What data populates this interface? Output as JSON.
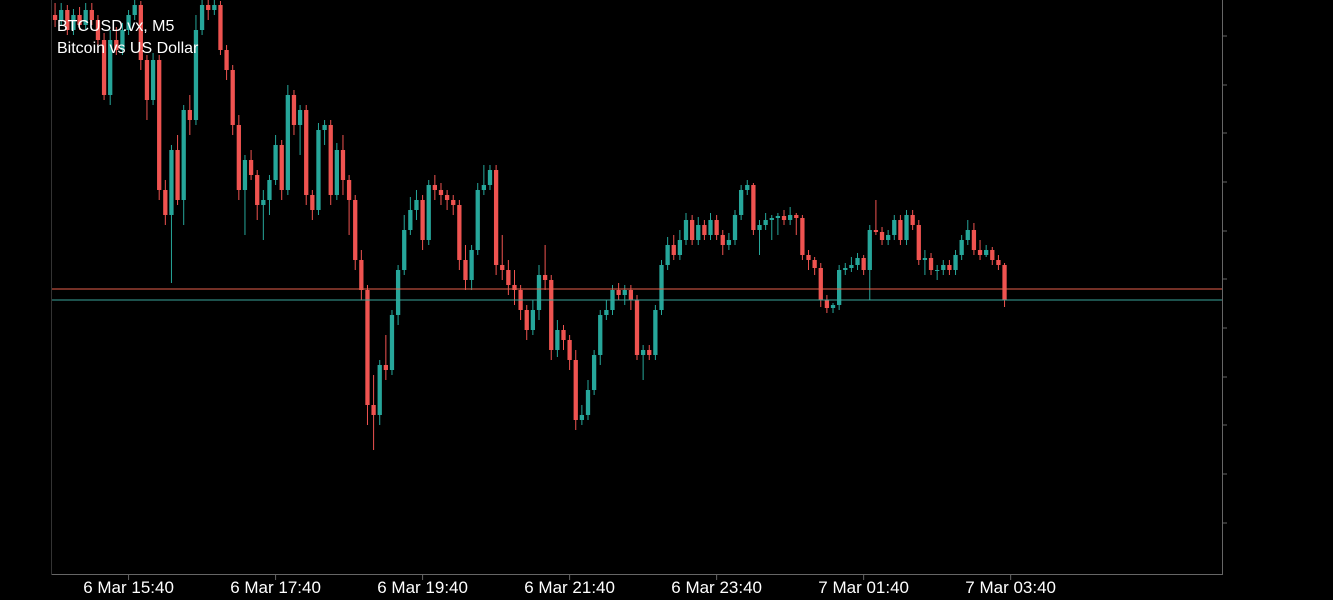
{
  "chart_data": {
    "type": "candlestick",
    "title": "BTCUSD.vx, M5",
    "subtitle": "Bitcoin vs US Dollar",
    "up_color": "#26a69a",
    "down_color": "#ef5350",
    "bid": 286,
    "bid_color": "#e8604c",
    "ask": 275,
    "ask_color": "#3aa59a",
    "ylim": [
      0,
      575
    ],
    "categories": [
      null,
      null,
      null,
      null,
      null,
      null,
      null,
      null,
      null,
      null,
      null,
      null,
      "6 Mar 15:40",
      null,
      null,
      null,
      null,
      null,
      null,
      null,
      null,
      null,
      null,
      null,
      null,
      null,
      null,
      null,
      null,
      null,
      null,
      null,
      null,
      null,
      null,
      null,
      "6 Mar 17:40",
      null,
      null,
      null,
      null,
      null,
      null,
      null,
      null,
      null,
      null,
      null,
      null,
      null,
      null,
      null,
      null,
      null,
      null,
      null,
      null,
      null,
      null,
      null,
      "6 Mar 19:40",
      null,
      null,
      null,
      null,
      null,
      null,
      null,
      null,
      null,
      null,
      null,
      null,
      null,
      null,
      null,
      null,
      null,
      null,
      null,
      null,
      null,
      null,
      null,
      "6 Mar 21:40",
      null,
      null,
      null,
      null,
      null,
      null,
      null,
      null,
      null,
      null,
      null,
      null,
      null,
      null,
      null,
      null,
      null,
      null,
      null,
      null,
      null,
      null,
      null,
      "6 Mar 23:40",
      null,
      null,
      null,
      null,
      null,
      null,
      null,
      null,
      null,
      null,
      null,
      null,
      null,
      null,
      null,
      null,
      null,
      null,
      null,
      null,
      null,
      null,
      null,
      "7 Mar 01:40",
      null,
      null,
      null,
      null,
      null,
      null,
      null,
      null,
      null,
      null,
      null,
      null,
      null,
      null,
      null,
      null,
      null,
      null,
      null,
      null,
      null,
      null,
      null,
      "7 Mar 03:40",
      null,
      null,
      null,
      null,
      null,
      null,
      null,
      null,
      null,
      null,
      null,
      null,
      null,
      null,
      null,
      null,
      null,
      null,
      null,
      null,
      null,
      null,
      null,
      null,
      null,
      null,
      null,
      null,
      null,
      null,
      null,
      null,
      null,
      null
    ],
    "candles": [
      [
        560,
        572,
        548,
        555
      ],
      [
        555,
        572,
        550,
        565
      ],
      [
        565,
        570,
        540,
        545
      ],
      [
        545,
        566,
        540,
        560
      ],
      [
        560,
        568,
        545,
        550
      ],
      [
        550,
        572,
        545,
        565
      ],
      [
        565,
        572,
        550,
        555
      ],
      [
        555,
        560,
        525,
        535
      ],
      [
        535,
        542,
        475,
        480
      ],
      [
        480,
        545,
        470,
        535
      ],
      [
        535,
        548,
        520,
        525
      ],
      [
        525,
        552,
        520,
        545
      ],
      [
        545,
        565,
        540,
        560
      ],
      [
        560,
        575,
        555,
        570
      ],
      [
        570,
        574,
        505,
        515
      ],
      [
        515,
        520,
        455,
        475
      ],
      [
        475,
        522,
        470,
        515
      ],
      [
        515,
        520,
        375,
        385
      ],
      [
        385,
        395,
        350,
        360
      ],
      [
        360,
        430,
        292,
        425
      ],
      [
        425,
        440,
        370,
        375
      ],
      [
        375,
        470,
        350,
        465
      ],
      [
        465,
        480,
        440,
        455
      ],
      [
        455,
        560,
        450,
        545
      ],
      [
        545,
        575,
        540,
        570
      ],
      [
        570,
        575,
        555,
        565
      ],
      [
        565,
        575,
        560,
        570
      ],
      [
        570,
        574,
        520,
        525
      ],
      [
        525,
        530,
        495,
        505
      ],
      [
        505,
        510,
        440,
        450
      ],
      [
        450,
        460,
        375,
        385
      ],
      [
        385,
        420,
        340,
        415
      ],
      [
        415,
        425,
        395,
        400
      ],
      [
        400,
        405,
        355,
        370
      ],
      [
        370,
        385,
        335,
        375
      ],
      [
        375,
        400,
        360,
        395
      ],
      [
        395,
        440,
        390,
        430
      ],
      [
        430,
        435,
        375,
        385
      ],
      [
        385,
        490,
        380,
        480
      ],
      [
        480,
        485,
        440,
        450
      ],
      [
        450,
        470,
        420,
        465
      ],
      [
        465,
        470,
        370,
        380
      ],
      [
        380,
        385,
        355,
        365
      ],
      [
        365,
        452,
        360,
        445
      ],
      [
        445,
        455,
        430,
        450
      ],
      [
        450,
        455,
        370,
        380
      ],
      [
        380,
        432,
        375,
        425
      ],
      [
        425,
        440,
        380,
        395
      ],
      [
        395,
        400,
        340,
        375
      ],
      [
        375,
        380,
        305,
        315
      ],
      [
        315,
        325,
        275,
        285
      ],
      [
        285,
        290,
        150,
        170
      ],
      [
        170,
        200,
        125,
        160
      ],
      [
        160,
        215,
        150,
        210
      ],
      [
        210,
        240,
        195,
        205
      ],
      [
        205,
        265,
        200,
        260
      ],
      [
        260,
        310,
        250,
        305
      ],
      [
        305,
        360,
        300,
        345
      ],
      [
        345,
        378,
        340,
        365
      ],
      [
        365,
        385,
        355,
        375
      ],
      [
        375,
        380,
        325,
        335
      ],
      [
        335,
        395,
        330,
        390
      ],
      [
        390,
        400,
        375,
        385
      ],
      [
        385,
        392,
        370,
        380
      ],
      [
        380,
        385,
        365,
        375
      ],
      [
        375,
        380,
        360,
        370
      ],
      [
        370,
        375,
        305,
        315
      ],
      [
        315,
        330,
        285,
        295
      ],
      [
        295,
        330,
        285,
        325
      ],
      [
        325,
        392,
        320,
        385
      ],
      [
        385,
        410,
        380,
        390
      ],
      [
        390,
        410,
        385,
        405
      ],
      [
        405,
        410,
        300,
        310
      ],
      [
        310,
        340,
        295,
        305
      ],
      [
        305,
        315,
        280,
        290
      ],
      [
        290,
        305,
        270,
        285
      ],
      [
        285,
        290,
        255,
        265
      ],
      [
        265,
        270,
        235,
        245
      ],
      [
        245,
        275,
        240,
        265
      ],
      [
        265,
        310,
        255,
        300
      ],
      [
        300,
        330,
        285,
        295
      ],
      [
        295,
        300,
        215,
        225
      ],
      [
        225,
        255,
        218,
        245
      ],
      [
        245,
        250,
        225,
        235
      ],
      [
        235,
        240,
        205,
        215
      ],
      [
        215,
        225,
        145,
        155
      ],
      [
        155,
        170,
        150,
        160
      ],
      [
        160,
        195,
        155,
        185
      ],
      [
        185,
        225,
        180,
        220
      ],
      [
        220,
        265,
        210,
        260
      ],
      [
        260,
        275,
        255,
        265
      ],
      [
        265,
        290,
        260,
        285
      ],
      [
        285,
        292,
        275,
        280
      ],
      [
        280,
        290,
        270,
        285
      ],
      [
        285,
        290,
        265,
        275
      ],
      [
        275,
        280,
        215,
        220
      ],
      [
        220,
        230,
        195,
        225
      ],
      [
        225,
        230,
        215,
        220
      ],
      [
        220,
        270,
        215,
        265
      ],
      [
        265,
        315,
        260,
        310
      ],
      [
        310,
        338,
        305,
        330
      ],
      [
        330,
        340,
        315,
        320
      ],
      [
        320,
        345,
        315,
        335
      ],
      [
        335,
        362,
        330,
        355
      ],
      [
        355,
        360,
        330,
        335
      ],
      [
        335,
        358,
        330,
        350
      ],
      [
        350,
        355,
        335,
        340
      ],
      [
        340,
        362,
        335,
        355
      ],
      [
        355,
        360,
        335,
        340
      ],
      [
        340,
        345,
        320,
        330
      ],
      [
        330,
        342,
        325,
        335
      ],
      [
        335,
        365,
        330,
        360
      ],
      [
        360,
        390,
        355,
        385
      ],
      [
        385,
        395,
        380,
        390
      ],
      [
        390,
        392,
        340,
        345
      ],
      [
        345,
        355,
        320,
        350
      ],
      [
        350,
        362,
        345,
        355
      ],
      [
        355,
        360,
        335,
        357
      ],
      [
        357,
        362,
        340,
        359
      ],
      [
        359,
        365,
        350,
        355
      ],
      [
        355,
        368,
        350,
        360
      ],
      [
        360,
        362,
        340,
        357
      ],
      [
        357,
        360,
        315,
        320
      ],
      [
        320,
        325,
        305,
        315
      ],
      [
        315,
        318,
        300,
        307
      ],
      [
        307,
        312,
        268,
        275
      ],
      [
        275,
        280,
        262,
        267
      ],
      [
        267,
        272,
        262,
        270
      ],
      [
        270,
        310,
        265,
        305
      ],
      [
        305,
        312,
        300,
        307
      ],
      [
        307,
        318,
        303,
        310
      ],
      [
        310,
        322,
        305,
        317
      ],
      [
        317,
        320,
        300,
        305
      ],
      [
        305,
        350,
        275,
        345
      ],
      [
        345,
        375,
        340,
        343
      ],
      [
        343,
        348,
        330,
        335
      ],
      [
        335,
        345,
        330,
        340
      ],
      [
        340,
        360,
        335,
        355
      ],
      [
        355,
        360,
        330,
        335
      ],
      [
        335,
        365,
        330,
        360
      ],
      [
        360,
        365,
        345,
        350
      ],
      [
        350,
        355,
        310,
        315
      ],
      [
        315,
        325,
        300,
        317
      ],
      [
        317,
        322,
        300,
        305
      ],
      [
        305,
        310,
        295,
        305
      ],
      [
        305,
        315,
        300,
        310
      ],
      [
        310,
        315,
        300,
        305
      ],
      [
        305,
        325,
        300,
        320
      ],
      [
        320,
        340,
        315,
        335
      ],
      [
        335,
        355,
        330,
        345
      ],
      [
        345,
        352,
        320,
        325
      ],
      [
        325,
        335,
        315,
        320
      ],
      [
        320,
        330,
        318,
        325
      ],
      [
        325,
        328,
        310,
        315
      ],
      [
        315,
        320,
        305,
        310
      ],
      [
        310,
        312,
        268,
        275
      ],
      null,
      null,
      null,
      null,
      null,
      null,
      null,
      null,
      null,
      null,
      null,
      null,
      null,
      null,
      null,
      null,
      null,
      null,
      null,
      null,
      null,
      null,
      null,
      null,
      null,
      null,
      null,
      null,
      null,
      null,
      null,
      null,
      null,
      null,
      null
    ]
  }
}
